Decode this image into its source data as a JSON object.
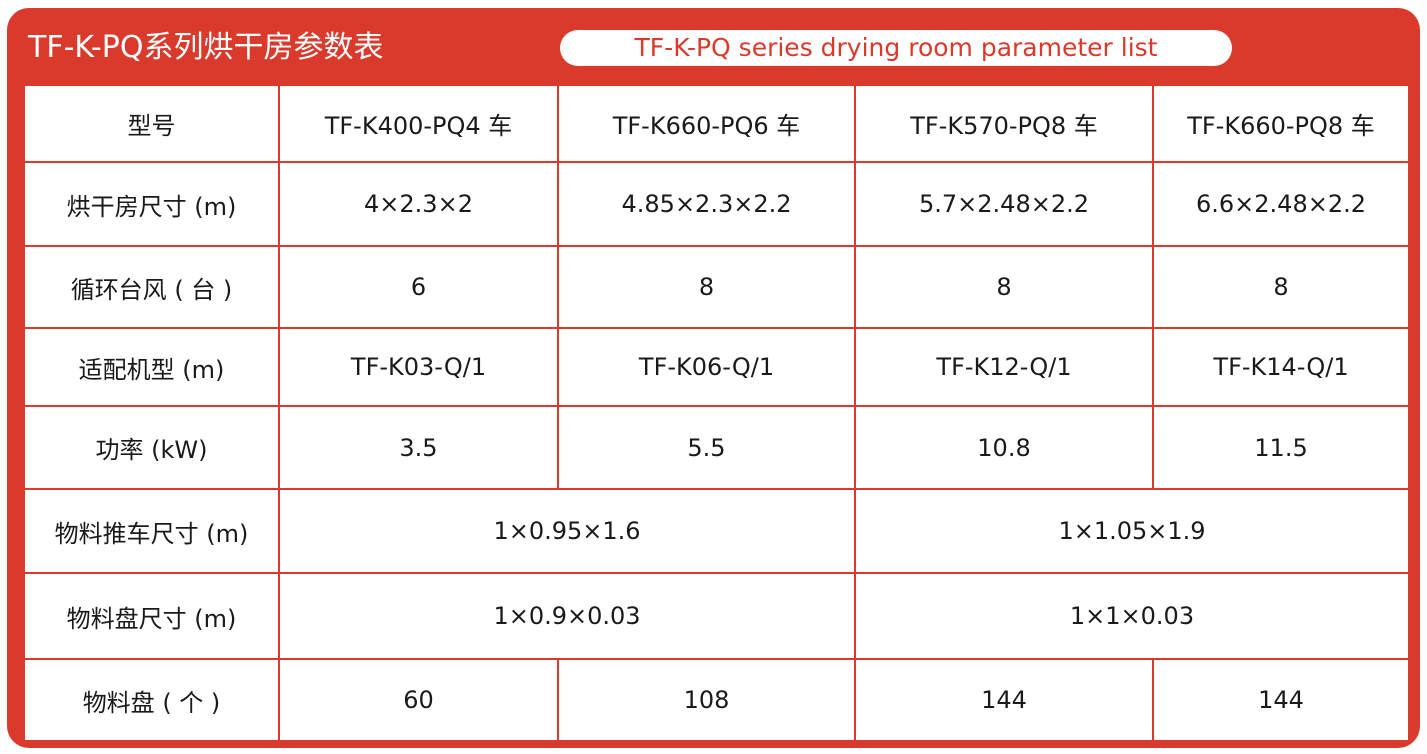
{
  "title_cn": "TF-K-PQ系列烘干房参数表",
  "title_en": "TF-K-PQ series drying room parameter list",
  "colors": {
    "accent": "#d93a2c",
    "text": "#1a1a1a",
    "background": "#ffffff"
  },
  "table": {
    "header": {
      "label": "型号",
      "models": [
        "TF-K400-PQ4 车",
        "TF-K660-PQ6 车",
        "TF-K570-PQ8 车",
        "TF-K660-PQ8 车"
      ]
    },
    "room_size": {
      "label": "烘干房尺寸 (m)",
      "values": [
        "4×2.3×2",
        "4.85×2.3×2.2",
        "5.7×2.48×2.2",
        "6.6×2.48×2.2"
      ]
    },
    "fans": {
      "label": "循环台风 ( 台 )",
      "values": [
        "6",
        "8",
        "8",
        "8"
      ]
    },
    "machine": {
      "label": "适配机型 (m)",
      "values": [
        "TF-K03-Q/1",
        "TF-K06-Q/1",
        "TF-K12-Q/1",
        "TF-K14-Q/1"
      ]
    },
    "power": {
      "label": "功率 (kW)",
      "values": [
        "3.5",
        "5.5",
        "10.8",
        "11.5"
      ]
    },
    "cart_size": {
      "label": "物料推车尺寸 (m)",
      "values": [
        "1×0.95×1.6",
        "1×1.05×1.9"
      ]
    },
    "tray_size": {
      "label": "物料盘尺寸 (m)",
      "values": [
        "1×0.9×0.03",
        "1×1×0.03"
      ]
    },
    "tray_count": {
      "label": "物料盘 ( 个 )",
      "values": [
        "60",
        "108",
        "144",
        "144"
      ]
    }
  }
}
